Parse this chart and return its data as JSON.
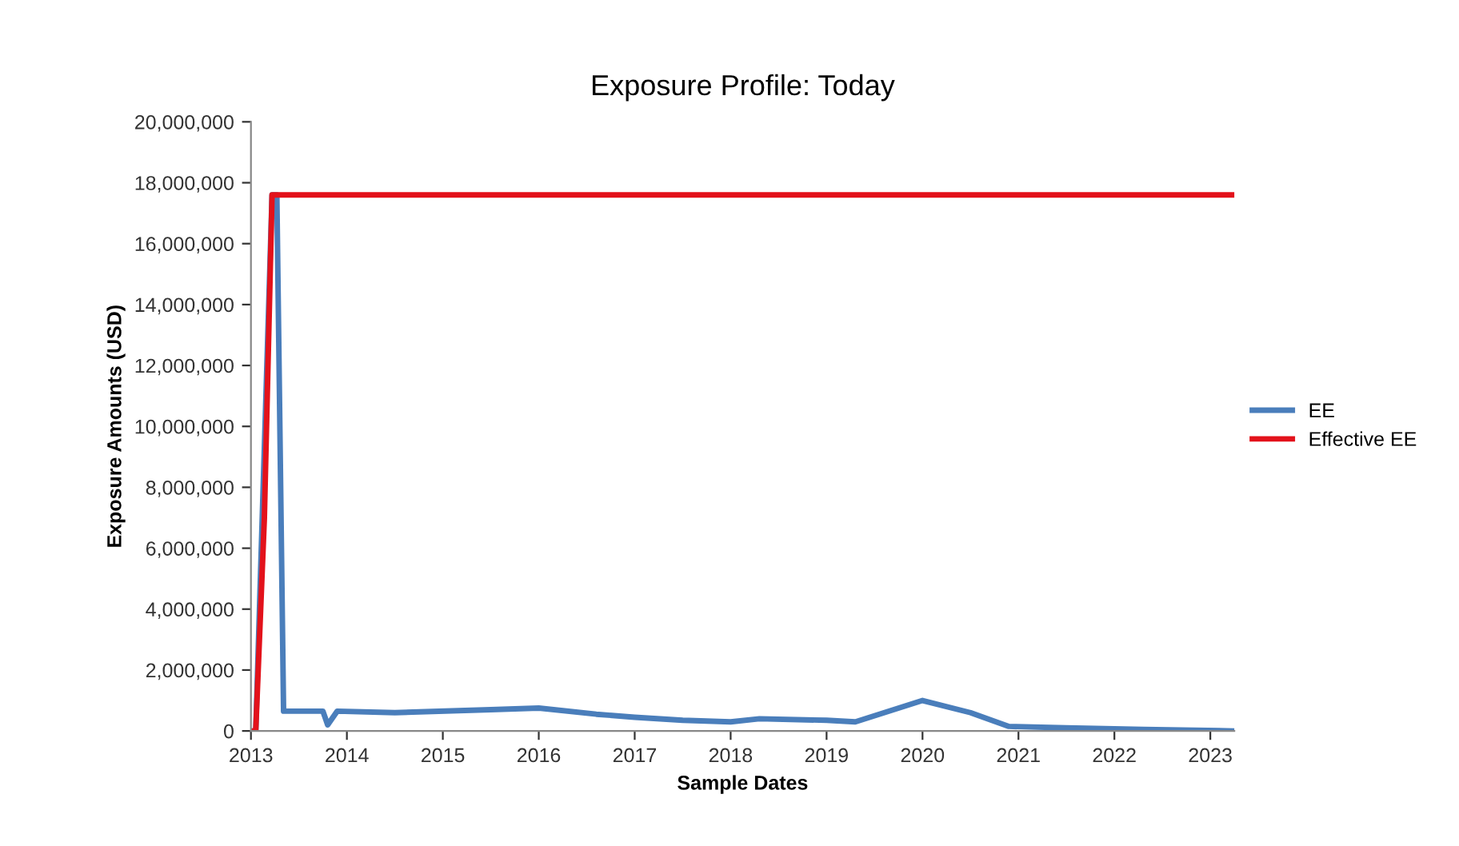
{
  "chart_data": {
    "type": "line",
    "title": "Exposure Profile: Today",
    "xlabel": "Sample Dates",
    "ylabel": "Exposure Amounts (USD)",
    "xlim": [
      2013,
      2023.25
    ],
    "xticks": [
      2013,
      2014,
      2015,
      2016,
      2017,
      2018,
      2019,
      2020,
      2021,
      2022,
      2023
    ],
    "ylim": [
      0,
      20000000
    ],
    "yticks": [
      {
        "value": 0,
        "label": "0"
      },
      {
        "value": 2000000,
        "label": "2,000,000"
      },
      {
        "value": 4000000,
        "label": "4,000,000"
      },
      {
        "value": 6000000,
        "label": "6,000,000"
      },
      {
        "value": 8000000,
        "label": "8,000,000"
      },
      {
        "value": 10000000,
        "label": "10,000,000"
      },
      {
        "value": 12000000,
        "label": "12,000,000"
      },
      {
        "value": 14000000,
        "label": "14,000,000"
      },
      {
        "value": 16000000,
        "label": "16,000,000"
      },
      {
        "value": 18000000,
        "label": "18,000,000"
      },
      {
        "value": 20000000,
        "label": "20,000,000"
      }
    ],
    "grid": false,
    "legend": "right",
    "marker": "none",
    "line_style": "solid",
    "series": [
      {
        "name": "EE",
        "color": "#4a7ebb",
        "x": [
          2013.0,
          2013.05,
          2013.22,
          2013.27,
          2013.34,
          2013.75,
          2013.8,
          2013.9,
          2014.5,
          2015.5,
          2016.0,
          2016.6,
          2017.0,
          2017.5,
          2018.0,
          2018.3,
          2019.0,
          2019.3,
          2020.0,
          2020.5,
          2020.9,
          2021.5,
          2022.3,
          2023.25
        ],
        "values": [
          0,
          0,
          17600000,
          17600000,
          650000,
          650000,
          200000,
          650000,
          600000,
          700000,
          750000,
          550000,
          450000,
          350000,
          300000,
          400000,
          350000,
          300000,
          1000000,
          600000,
          150000,
          100000,
          50000,
          0
        ]
      },
      {
        "name": "Effective EE",
        "color": "#e3121b",
        "x": [
          2013.0,
          2013.05,
          2013.14,
          2013.22,
          2023.25
        ],
        "values": [
          0,
          0,
          7000000,
          17600000,
          17600000
        ]
      }
    ]
  }
}
